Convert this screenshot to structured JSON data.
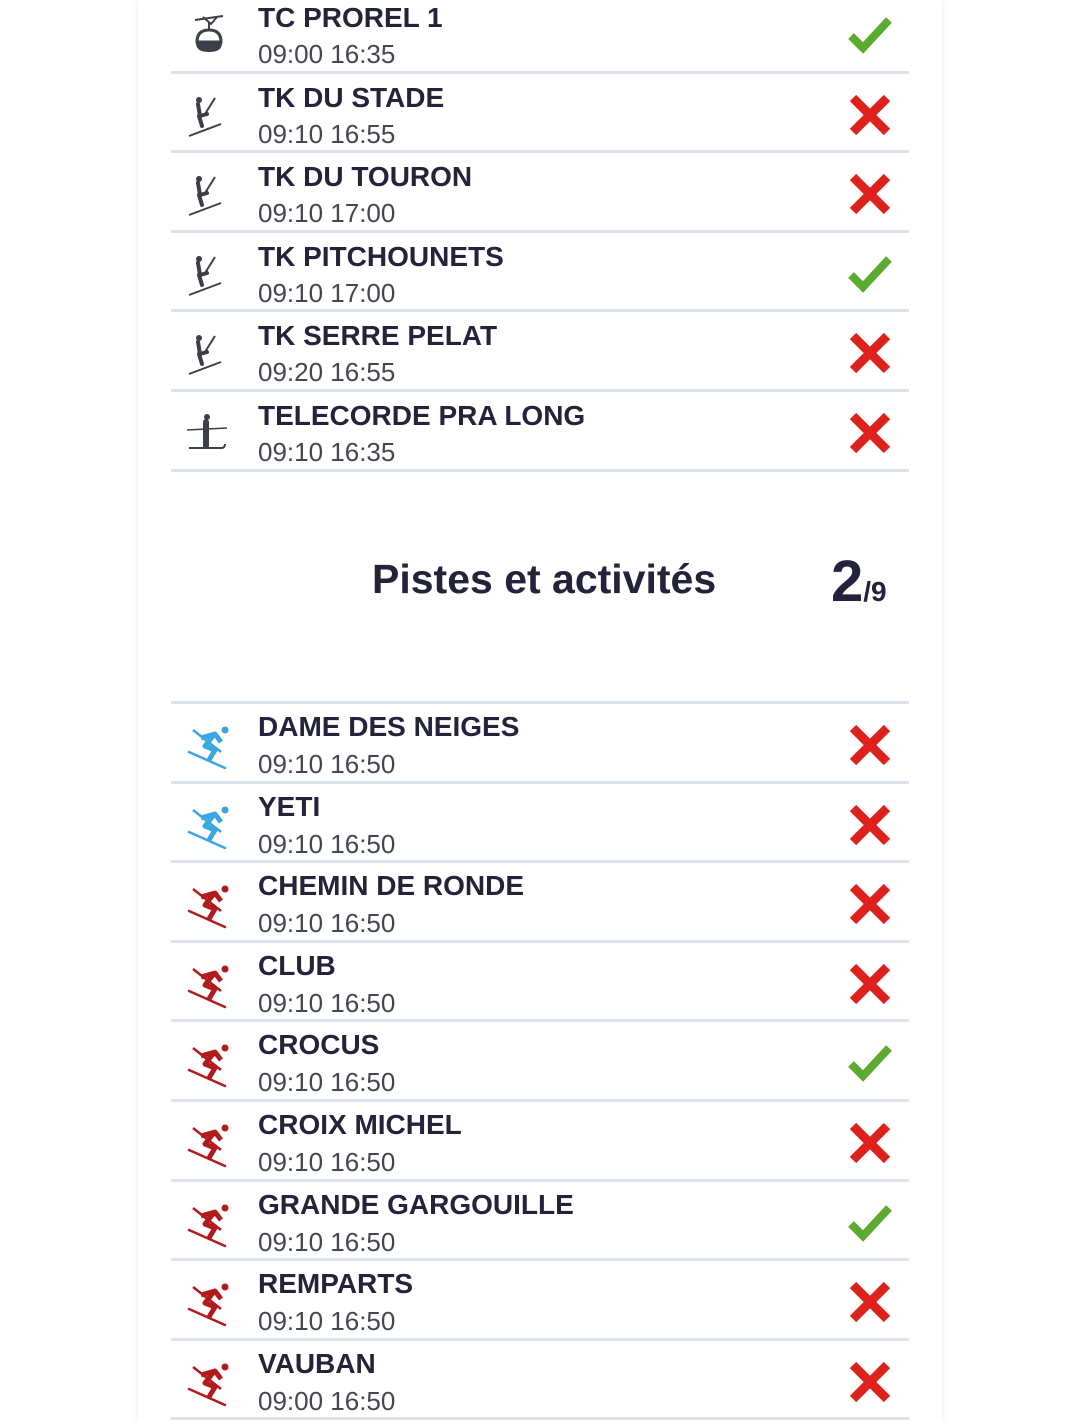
{
  "lifts": [
    {
      "name": "TC PROREL 1",
      "time": "09:00 16:35",
      "icon": "gondola-icon",
      "open": true
    },
    {
      "name": "TK DU STADE",
      "time": "09:10 16:55",
      "icon": "surface-lift-icon",
      "open": false
    },
    {
      "name": "TK DU TOURON",
      "time": "09:10 17:00",
      "icon": "surface-lift-icon",
      "open": false
    },
    {
      "name": "TK PITCHOUNETS",
      "time": "09:10 17:00",
      "icon": "surface-lift-icon",
      "open": true
    },
    {
      "name": "TK SERRE PELAT",
      "time": "09:20 16:55",
      "icon": "surface-lift-icon",
      "open": false
    },
    {
      "name": "TELECORDE PRA LONG",
      "time": "09:10 16:35",
      "icon": "rope-tow-icon",
      "open": false
    }
  ],
  "pistes_section": {
    "title": "Pistes et activités",
    "open_count": "2",
    "total": "/9"
  },
  "pistes": [
    {
      "name": "DAME DES NEIGES",
      "time": "09:10 16:50",
      "level_color": "#3aa7e4",
      "open": false
    },
    {
      "name": "YETI",
      "time": "09:10 16:50",
      "level_color": "#3aa7e4",
      "open": false
    },
    {
      "name": "CHEMIN DE RONDE",
      "time": "09:10 16:50",
      "level_color": "#b31b1b",
      "open": false
    },
    {
      "name": "CLUB",
      "time": "09:10 16:50",
      "level_color": "#b31b1b",
      "open": false
    },
    {
      "name": "CROCUS",
      "time": "09:10 16:50",
      "level_color": "#b31b1b",
      "open": true
    },
    {
      "name": "CROIX MICHEL",
      "time": "09:10 16:50",
      "level_color": "#b31b1b",
      "open": false
    },
    {
      "name": "GRANDE GARGOUILLE",
      "time": "09:10 16:50",
      "level_color": "#b31b1b",
      "open": true
    },
    {
      "name": "REMPARTS",
      "time": "09:10 16:50",
      "level_color": "#b31b1b",
      "open": false
    },
    {
      "name": "VAUBAN",
      "time": "09:00 16:50",
      "level_color": "#b31b1b",
      "open": false
    }
  ],
  "colors": {
    "open": "#5aab2e",
    "closed": "#e0201b",
    "text": "#23233b"
  }
}
